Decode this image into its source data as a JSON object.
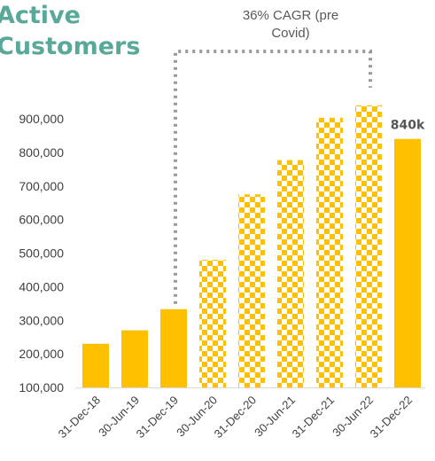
{
  "title_lines": [
    "Active",
    "Customers"
  ],
  "annotation": "36% CAGR (pre Covid)",
  "colors": {
    "bar": "#FFC000",
    "title": "#5AA899",
    "bracket": "#999999"
  },
  "chart_data": {
    "type": "bar",
    "title": "Active Customers",
    "categories": [
      "31-Dec-18",
      "30-Jun-19",
      "31-Dec-19",
      "30-Jun-20",
      "31-Dec-20",
      "30-Jun-21",
      "31-Dec-21",
      "30-Jun-22",
      "31-Dec-22"
    ],
    "values": [
      230000,
      270000,
      333000,
      480000,
      675000,
      777000,
      903000,
      940000,
      840000
    ],
    "fill_style": [
      "solid",
      "solid",
      "solid",
      "checkered",
      "checkered",
      "checkered",
      "checkered",
      "checkered",
      "solid"
    ],
    "ylim": [
      100000,
      900000
    ],
    "yticks": [
      {
        "value": 100000,
        "label": "100,000"
      },
      {
        "value": 200000,
        "label": "200,000"
      },
      {
        "value": 300000,
        "label": "300,000"
      },
      {
        "value": 400000,
        "label": "400,000"
      },
      {
        "value": 500000,
        "label": "500,000"
      },
      {
        "value": 600000,
        "label": "600,000"
      },
      {
        "value": 700000,
        "label": "700,000"
      },
      {
        "value": 800000,
        "label": "800,000"
      },
      {
        "value": 900000,
        "label": "900,000"
      }
    ],
    "data_labels": [
      {
        "category": "31-Dec-22",
        "text": "840k"
      }
    ],
    "annotation": {
      "text": "36% CAGR (pre Covid)",
      "from": "31-Dec-19",
      "to": "30-Jun-22"
    },
    "xlabel": "",
    "ylabel": "",
    "grid": false,
    "legend": "none"
  }
}
